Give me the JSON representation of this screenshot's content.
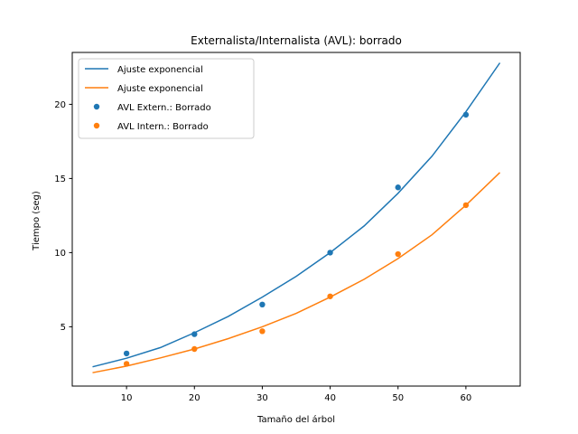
{
  "chart_data": {
    "type": "scatter",
    "title": "Externalista/Internalista (AVL): borrado",
    "xlabel": "Tamaño del árbol",
    "ylabel": "Tiempo (seg)",
    "xlim": [
      2,
      68
    ],
    "ylim": [
      1.0,
      23.5
    ],
    "xticks": [
      10,
      20,
      30,
      40,
      50,
      60
    ],
    "yticks": [
      5,
      10,
      15,
      20
    ],
    "grid": false,
    "legend_position": "top-left",
    "series": [
      {
        "name": "Ajuste exponencial",
        "kind": "line",
        "color": "#1f77b4",
        "x": [
          5,
          10,
          15,
          20,
          25,
          30,
          35,
          40,
          45,
          50,
          55,
          60,
          65
        ],
        "y": [
          2.3,
          2.88,
          3.6,
          4.6,
          5.7,
          7.0,
          8.4,
          10.0,
          11.8,
          14.0,
          16.5,
          19.5,
          22.8
        ]
      },
      {
        "name": "Ajuste exponencial",
        "kind": "line",
        "color": "#ff7f0e",
        "x": [
          5,
          10,
          15,
          20,
          25,
          30,
          35,
          40,
          45,
          50,
          55,
          60,
          65
        ],
        "y": [
          1.9,
          2.35,
          2.9,
          3.5,
          4.2,
          5.0,
          5.9,
          7.0,
          8.2,
          9.6,
          11.2,
          13.2,
          15.4
        ]
      },
      {
        "name": "AVL Extern.: Borrado",
        "kind": "scatter",
        "color": "#1f77b4",
        "x": [
          10,
          20,
          30,
          40,
          50,
          60
        ],
        "y": [
          3.2,
          4.5,
          6.5,
          10.0,
          14.4,
          19.3
        ]
      },
      {
        "name": "AVL Intern.: Borrado",
        "kind": "scatter",
        "color": "#ff7f0e",
        "x": [
          10,
          20,
          30,
          40,
          50,
          60
        ],
        "y": [
          2.5,
          3.5,
          4.7,
          7.05,
          9.9,
          13.2
        ]
      }
    ]
  }
}
